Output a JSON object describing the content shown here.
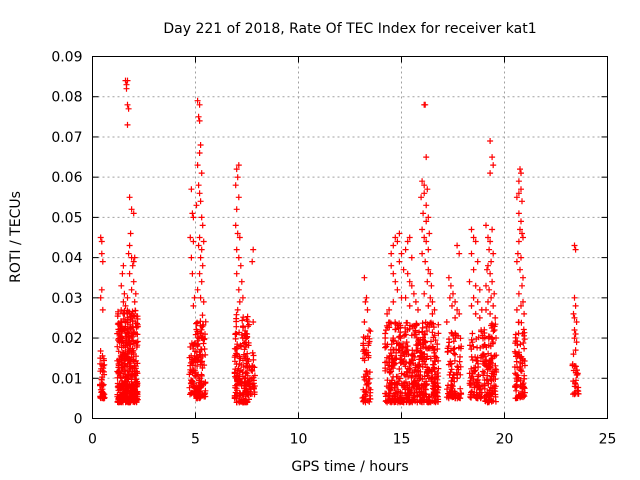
{
  "chart_data": {
    "type": "scatter",
    "title": "Day 221 of 2018, Rate Of TEC Index for receiver kat1",
    "xlabel": "GPS time / hours",
    "ylabel": "ROTI / TECUs",
    "xlim": [
      0,
      25
    ],
    "ylim": [
      0,
      0.09
    ],
    "xticks": [
      "0",
      "5",
      "10",
      "15",
      "20",
      "25"
    ],
    "yticks": [
      "0",
      "0.01",
      "0.02",
      "0.03",
      "0.04",
      "0.05",
      "0.06",
      "0.07",
      "0.08",
      "0.09"
    ],
    "grid": true,
    "marker": "+",
    "color": "#ff0000",
    "clusters": [
      {
        "x_range": [
          0.35,
          0.6
        ],
        "y_range": [
          0.005,
          0.017
        ],
        "n": 45
      },
      {
        "x_range": [
          1.2,
          2.2
        ],
        "y_range": [
          0.004,
          0.027
        ],
        "n": 420
      },
      {
        "x_range": [
          4.7,
          5.0
        ],
        "y_range": [
          0.006,
          0.019
        ],
        "n": 55
      },
      {
        "x_range": [
          5.0,
          5.5
        ],
        "y_range": [
          0.005,
          0.026
        ],
        "n": 110
      },
      {
        "x_range": [
          6.9,
          7.6
        ],
        "y_range": [
          0.004,
          0.026
        ],
        "n": 170
      },
      {
        "x_range": [
          7.6,
          7.9
        ],
        "y_range": [
          0.006,
          0.017
        ],
        "n": 30
      },
      {
        "x_range": [
          13.1,
          13.5
        ],
        "y_range": [
          0.004,
          0.022
        ],
        "n": 60
      },
      {
        "x_range": [
          14.2,
          16.8
        ],
        "y_range": [
          0.004,
          0.024
        ],
        "n": 520
      },
      {
        "x_range": [
          17.2,
          17.9
        ],
        "y_range": [
          0.005,
          0.022
        ],
        "n": 90
      },
      {
        "x_range": [
          18.3,
          19.0
        ],
        "y_range": [
          0.005,
          0.022
        ],
        "n": 90
      },
      {
        "x_range": [
          19.0,
          19.6
        ],
        "y_range": [
          0.004,
          0.024
        ],
        "n": 110
      },
      {
        "x_range": [
          20.5,
          21.0
        ],
        "y_range": [
          0.005,
          0.024
        ],
        "n": 90
      },
      {
        "x_range": [
          23.3,
          23.6
        ],
        "y_range": [
          0.006,
          0.015
        ],
        "n": 25
      }
    ],
    "points": [
      [
        0.4,
        0.045
      ],
      [
        0.45,
        0.044
      ],
      [
        0.45,
        0.041
      ],
      [
        0.5,
        0.039
      ],
      [
        0.45,
        0.032
      ],
      [
        0.4,
        0.03
      ],
      [
        0.5,
        0.027
      ],
      [
        1.5,
        0.029
      ],
      [
        1.4,
        0.033
      ],
      [
        1.45,
        0.036
      ],
      [
        1.5,
        0.038
      ],
      [
        1.55,
        0.031
      ],
      [
        1.6,
        0.084
      ],
      [
        1.65,
        0.083
      ],
      [
        1.7,
        0.084
      ],
      [
        1.65,
        0.082
      ],
      [
        1.7,
        0.078
      ],
      [
        1.75,
        0.077
      ],
      [
        1.7,
        0.073
      ],
      [
        1.8,
        0.055
      ],
      [
        1.9,
        0.052
      ],
      [
        2.0,
        0.051
      ],
      [
        1.85,
        0.046
      ],
      [
        1.8,
        0.043
      ],
      [
        1.75,
        0.041
      ],
      [
        1.9,
        0.04
      ],
      [
        2.0,
        0.039
      ],
      [
        2.05,
        0.04
      ],
      [
        1.95,
        0.038
      ],
      [
        1.8,
        0.036
      ],
      [
        2.0,
        0.034
      ],
      [
        1.9,
        0.032
      ],
      [
        1.7,
        0.03
      ],
      [
        1.6,
        0.028
      ],
      [
        2.05,
        0.029
      ],
      [
        1.55,
        0.026
      ],
      [
        2.1,
        0.031
      ],
      [
        4.8,
        0.057
      ],
      [
        4.85,
        0.051
      ],
      [
        4.9,
        0.05
      ],
      [
        4.75,
        0.045
      ],
      [
        4.9,
        0.044
      ],
      [
        4.8,
        0.04
      ],
      [
        4.85,
        0.036
      ],
      [
        4.95,
        0.03
      ],
      [
        4.9,
        0.028
      ],
      [
        5.1,
        0.079
      ],
      [
        5.2,
        0.078
      ],
      [
        5.15,
        0.075
      ],
      [
        5.2,
        0.074
      ],
      [
        5.25,
        0.068
      ],
      [
        5.2,
        0.066
      ],
      [
        5.1,
        0.063
      ],
      [
        5.3,
        0.061
      ],
      [
        5.15,
        0.058
      ],
      [
        5.2,
        0.056
      ],
      [
        5.25,
        0.054
      ],
      [
        5.05,
        0.053
      ],
      [
        5.3,
        0.05
      ],
      [
        5.35,
        0.048
      ],
      [
        5.2,
        0.045
      ],
      [
        5.15,
        0.043
      ],
      [
        5.3,
        0.042
      ],
      [
        5.4,
        0.044
      ],
      [
        5.25,
        0.04
      ],
      [
        5.35,
        0.038
      ],
      [
        5.2,
        0.036
      ],
      [
        5.3,
        0.034
      ],
      [
        5.1,
        0.032
      ],
      [
        5.25,
        0.03
      ],
      [
        5.4,
        0.029
      ],
      [
        7.0,
        0.062
      ],
      [
        7.1,
        0.063
      ],
      [
        7.05,
        0.06
      ],
      [
        6.95,
        0.058
      ],
      [
        7.1,
        0.055
      ],
      [
        7.0,
        0.052
      ],
      [
        6.95,
        0.048
      ],
      [
        7.05,
        0.046
      ],
      [
        7.15,
        0.045
      ],
      [
        7.0,
        0.042
      ],
      [
        7.1,
        0.04
      ],
      [
        7.2,
        0.038
      ],
      [
        7.0,
        0.036
      ],
      [
        7.25,
        0.034
      ],
      [
        7.1,
        0.032
      ],
      [
        7.3,
        0.03
      ],
      [
        7.15,
        0.029
      ],
      [
        7.05,
        0.027
      ],
      [
        7.8,
        0.042
      ],
      [
        7.75,
        0.039
      ],
      [
        7.8,
        0.024
      ],
      [
        13.2,
        0.035
      ],
      [
        13.3,
        0.03
      ],
      [
        13.25,
        0.029
      ],
      [
        13.35,
        0.027
      ],
      [
        13.2,
        0.024
      ],
      [
        14.5,
        0.041
      ],
      [
        14.6,
        0.043
      ],
      [
        14.7,
        0.045
      ],
      [
        14.9,
        0.046
      ],
      [
        14.8,
        0.044
      ],
      [
        14.5,
        0.038
      ],
      [
        14.6,
        0.036
      ],
      [
        14.7,
        0.034
      ],
      [
        14.9,
        0.039
      ],
      [
        15.0,
        0.041
      ],
      [
        15.1,
        0.037
      ],
      [
        14.8,
        0.032
      ],
      [
        15.3,
        0.044
      ],
      [
        15.4,
        0.045
      ],
      [
        15.2,
        0.042
      ],
      [
        15.5,
        0.04
      ],
      [
        15.3,
        0.036
      ],
      [
        15.4,
        0.034
      ],
      [
        15.5,
        0.033
      ],
      [
        15.2,
        0.03
      ],
      [
        15.6,
        0.031
      ],
      [
        15.4,
        0.028
      ],
      [
        15.0,
        0.03
      ],
      [
        14.6,
        0.029
      ],
      [
        14.4,
        0.027
      ],
      [
        15.7,
        0.029
      ],
      [
        15.8,
        0.027
      ],
      [
        14.3,
        0.026
      ],
      [
        16.1,
        0.078
      ],
      [
        16.15,
        0.078
      ],
      [
        16.2,
        0.065
      ],
      [
        16.0,
        0.059
      ],
      [
        16.1,
        0.058
      ],
      [
        16.25,
        0.057
      ],
      [
        16.1,
        0.056
      ],
      [
        15.95,
        0.055
      ],
      [
        16.2,
        0.053
      ],
      [
        16.05,
        0.051
      ],
      [
        16.3,
        0.05
      ],
      [
        16.2,
        0.049
      ],
      [
        16.0,
        0.047
      ],
      [
        16.35,
        0.046
      ],
      [
        16.1,
        0.045
      ],
      [
        16.2,
        0.044
      ],
      [
        16.3,
        0.042
      ],
      [
        16.0,
        0.041
      ],
      [
        16.15,
        0.039
      ],
      [
        16.3,
        0.037
      ],
      [
        16.4,
        0.036
      ],
      [
        16.25,
        0.034
      ],
      [
        16.45,
        0.033
      ],
      [
        16.1,
        0.031
      ],
      [
        16.4,
        0.03
      ],
      [
        16.5,
        0.029
      ],
      [
        16.3,
        0.028
      ],
      [
        16.6,
        0.027
      ],
      [
        16.5,
        0.026
      ],
      [
        17.3,
        0.035
      ],
      [
        17.4,
        0.033
      ],
      [
        17.5,
        0.031
      ],
      [
        17.35,
        0.03
      ],
      [
        17.6,
        0.029
      ],
      [
        17.45,
        0.028
      ],
      [
        17.7,
        0.027
      ],
      [
        17.8,
        0.026
      ],
      [
        17.6,
        0.025
      ],
      [
        17.2,
        0.024
      ],
      [
        17.7,
        0.043
      ],
      [
        17.8,
        0.041
      ],
      [
        18.4,
        0.047
      ],
      [
        18.5,
        0.045
      ],
      [
        18.6,
        0.044
      ],
      [
        18.4,
        0.041
      ],
      [
        18.7,
        0.039
      ],
      [
        18.5,
        0.037
      ],
      [
        18.3,
        0.034
      ],
      [
        18.6,
        0.033
      ],
      [
        18.8,
        0.032
      ],
      [
        18.5,
        0.03
      ],
      [
        18.7,
        0.029
      ],
      [
        18.4,
        0.028
      ],
      [
        18.9,
        0.027
      ],
      [
        18.6,
        0.026
      ],
      [
        18.8,
        0.025
      ],
      [
        19.3,
        0.069
      ],
      [
        19.4,
        0.065
      ],
      [
        19.45,
        0.063
      ],
      [
        19.3,
        0.061
      ],
      [
        19.4,
        0.047
      ],
      [
        19.2,
        0.045
      ],
      [
        19.3,
        0.044
      ],
      [
        19.1,
        0.048
      ],
      [
        19.25,
        0.042
      ],
      [
        19.45,
        0.041
      ],
      [
        19.35,
        0.039
      ],
      [
        19.2,
        0.038
      ],
      [
        19.15,
        0.037
      ],
      [
        19.3,
        0.036
      ],
      [
        19.4,
        0.034
      ],
      [
        19.1,
        0.033
      ],
      [
        19.25,
        0.032
      ],
      [
        19.5,
        0.031
      ],
      [
        19.35,
        0.03
      ],
      [
        19.2,
        0.029
      ],
      [
        19.45,
        0.028
      ],
      [
        19.1,
        0.027
      ],
      [
        19.3,
        0.026
      ],
      [
        19.55,
        0.025
      ],
      [
        20.6,
        0.055
      ],
      [
        20.7,
        0.056
      ],
      [
        20.75,
        0.062
      ],
      [
        20.8,
        0.061
      ],
      [
        20.7,
        0.059
      ],
      [
        20.8,
        0.057
      ],
      [
        20.85,
        0.054
      ],
      [
        20.7,
        0.051
      ],
      [
        20.8,
        0.049
      ],
      [
        20.75,
        0.047
      ],
      [
        20.85,
        0.046
      ],
      [
        20.9,
        0.045
      ],
      [
        20.7,
        0.044
      ],
      [
        20.65,
        0.041
      ],
      [
        20.8,
        0.04
      ],
      [
        20.6,
        0.039
      ],
      [
        20.75,
        0.037
      ],
      [
        20.9,
        0.035
      ],
      [
        20.85,
        0.033
      ],
      [
        20.7,
        0.031
      ],
      [
        20.9,
        0.029
      ],
      [
        20.8,
        0.028
      ],
      [
        20.6,
        0.027
      ],
      [
        20.95,
        0.026
      ],
      [
        23.4,
        0.043
      ],
      [
        23.45,
        0.042
      ],
      [
        23.4,
        0.03
      ],
      [
        23.45,
        0.028
      ],
      [
        23.35,
        0.026
      ],
      [
        23.4,
        0.025
      ],
      [
        23.5,
        0.024
      ],
      [
        23.4,
        0.022
      ],
      [
        23.45,
        0.021
      ],
      [
        23.4,
        0.02
      ],
      [
        23.5,
        0.019
      ],
      [
        23.45,
        0.017
      ],
      [
        23.35,
        0.016
      ]
    ]
  }
}
